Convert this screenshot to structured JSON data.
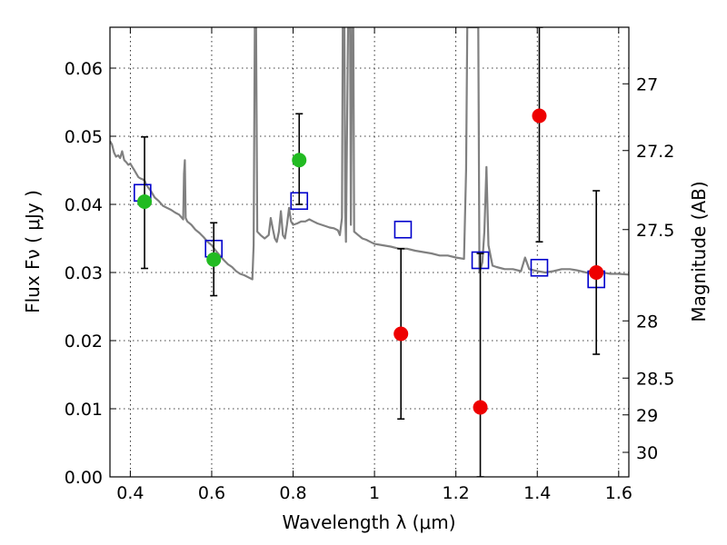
{
  "chart_data": {
    "type": "scatter",
    "xlabel": "Wavelength  λ (μm)",
    "ylabel_left": "Flux  Fν  ( μJy )",
    "ylabel_right": "Magnitude (AB)",
    "xlim": [
      0.35,
      1.625
    ],
    "ylim": [
      0.0,
      0.066
    ],
    "x_ticks": [
      0.4,
      0.6,
      0.8,
      1.0,
      1.2,
      1.4,
      1.6
    ],
    "x_tick_labels": [
      "0.4",
      "0.6",
      "0.8",
      "1",
      "1.2",
      "1.4",
      "1.6"
    ],
    "y_ticks": [
      0.0,
      0.01,
      0.02,
      0.03,
      0.04,
      0.05,
      0.06
    ],
    "y_tick_labels": [
      "0.00",
      "0.01",
      "0.02",
      "0.03",
      "0.04",
      "0.05",
      "0.06"
    ],
    "right_ticks": [
      {
        "label": "27",
        "flux": 0.0577
      },
      {
        "label": "27.2",
        "flux": 0.0479
      },
      {
        "label": "27.5",
        "flux": 0.0363
      },
      {
        "label": "28",
        "flux": 0.0229
      },
      {
        "label": "28.5",
        "flux": 0.0145
      },
      {
        "label": "29",
        "flux": 0.0091
      },
      {
        "label": "30",
        "flux": 0.0036
      }
    ],
    "grid": true,
    "colors": {
      "spectrum": "#808080",
      "model": "#0000cc",
      "detected": "#22bb22",
      "undetected": "#ee0000",
      "errorbar": "#000000"
    },
    "spectrum": [
      [
        0.35,
        0.0493
      ],
      [
        0.355,
        0.0488
      ],
      [
        0.36,
        0.0476
      ],
      [
        0.365,
        0.047
      ],
      [
        0.37,
        0.0472
      ],
      [
        0.375,
        0.0468
      ],
      [
        0.38,
        0.0478
      ],
      [
        0.385,
        0.0465
      ],
      [
        0.39,
        0.0462
      ],
      [
        0.395,
        0.0458
      ],
      [
        0.4,
        0.046
      ],
      [
        0.405,
        0.0455
      ],
      [
        0.41,
        0.045
      ],
      [
        0.415,
        0.0445
      ],
      [
        0.42,
        0.044
      ],
      [
        0.425,
        0.0438
      ],
      [
        0.43,
        0.0437
      ],
      [
        0.435,
        0.0435
      ],
      [
        0.44,
        0.0428
      ],
      [
        0.45,
        0.042
      ],
      [
        0.46,
        0.041
      ],
      [
        0.47,
        0.0405
      ],
      [
        0.48,
        0.0398
      ],
      [
        0.49,
        0.0395
      ],
      [
        0.5,
        0.0392
      ],
      [
        0.51,
        0.0388
      ],
      [
        0.52,
        0.0385
      ],
      [
        0.53,
        0.0378
      ],
      [
        0.532,
        0.0445
      ],
      [
        0.534,
        0.0465
      ],
      [
        0.536,
        0.038
      ],
      [
        0.54,
        0.0375
      ],
      [
        0.55,
        0.037
      ],
      [
        0.56,
        0.0363
      ],
      [
        0.57,
        0.0358
      ],
      [
        0.58,
        0.0352
      ],
      [
        0.59,
        0.0345
      ],
      [
        0.6,
        0.034
      ],
      [
        0.61,
        0.0332
      ],
      [
        0.62,
        0.0325
      ],
      [
        0.63,
        0.0318
      ],
      [
        0.64,
        0.0312
      ],
      [
        0.65,
        0.0308
      ],
      [
        0.66,
        0.0302
      ],
      [
        0.67,
        0.0298
      ],
      [
        0.68,
        0.0296
      ],
      [
        0.69,
        0.0293
      ],
      [
        0.7,
        0.029
      ],
      [
        0.703,
        0.034
      ],
      [
        0.706,
        0.066
      ],
      [
        0.709,
        0.066
      ],
      [
        0.712,
        0.036
      ],
      [
        0.72,
        0.0355
      ],
      [
        0.73,
        0.035
      ],
      [
        0.74,
        0.0355
      ],
      [
        0.745,
        0.038
      ],
      [
        0.75,
        0.0365
      ],
      [
        0.755,
        0.035
      ],
      [
        0.76,
        0.0345
      ],
      [
        0.765,
        0.036
      ],
      [
        0.77,
        0.039
      ],
      [
        0.775,
        0.0355
      ],
      [
        0.78,
        0.035
      ],
      [
        0.785,
        0.037
      ],
      [
        0.79,
        0.0395
      ],
      [
        0.795,
        0.0375
      ],
      [
        0.8,
        0.037
      ],
      [
        0.81,
        0.0372
      ],
      [
        0.82,
        0.0375
      ],
      [
        0.83,
        0.0375
      ],
      [
        0.84,
        0.0378
      ],
      [
        0.85,
        0.0375
      ],
      [
        0.86,
        0.0372
      ],
      [
        0.87,
        0.037
      ],
      [
        0.88,
        0.0368
      ],
      [
        0.89,
        0.0366
      ],
      [
        0.9,
        0.0365
      ],
      [
        0.91,
        0.0362
      ],
      [
        0.915,
        0.0355
      ],
      [
        0.92,
        0.038
      ],
      [
        0.922,
        0.066
      ],
      [
        0.926,
        0.066
      ],
      [
        0.928,
        0.039
      ],
      [
        0.93,
        0.0345
      ],
      [
        0.935,
        0.066
      ],
      [
        0.94,
        0.066
      ],
      [
        0.942,
        0.037
      ],
      [
        0.945,
        0.066
      ],
      [
        0.948,
        0.066
      ],
      [
        0.95,
        0.036
      ],
      [
        0.96,
        0.0355
      ],
      [
        0.97,
        0.035
      ],
      [
        0.98,
        0.0348
      ],
      [
        0.99,
        0.0345
      ],
      [
        1.0,
        0.0342
      ],
      [
        1.02,
        0.034
      ],
      [
        1.04,
        0.0338
      ],
      [
        1.06,
        0.0335
      ],
      [
        1.08,
        0.0335
      ],
      [
        1.1,
        0.0332
      ],
      [
        1.12,
        0.033
      ],
      [
        1.14,
        0.0328
      ],
      [
        1.16,
        0.0325
      ],
      [
        1.18,
        0.0325
      ],
      [
        1.2,
        0.0322
      ],
      [
        1.22,
        0.032
      ],
      [
        1.225,
        0.045
      ],
      [
        1.228,
        0.066
      ],
      [
        1.255,
        0.066
      ],
      [
        1.258,
        0.03
      ],
      [
        1.265,
        0.0315
      ],
      [
        1.27,
        0.036
      ],
      [
        1.275,
        0.0455
      ],
      [
        1.28,
        0.034
      ],
      [
        1.29,
        0.031
      ],
      [
        1.3,
        0.0308
      ],
      [
        1.32,
        0.0305
      ],
      [
        1.34,
        0.0305
      ],
      [
        1.36,
        0.0302
      ],
      [
        1.37,
        0.0322
      ],
      [
        1.38,
        0.0305
      ],
      [
        1.4,
        0.0302
      ],
      [
        1.42,
        0.03
      ],
      [
        1.44,
        0.0302
      ],
      [
        1.46,
        0.0305
      ],
      [
        1.48,
        0.0305
      ],
      [
        1.5,
        0.0303
      ],
      [
        1.52,
        0.03
      ],
      [
        1.54,
        0.0298
      ],
      [
        1.56,
        0.03
      ],
      [
        1.58,
        0.0298
      ],
      [
        1.6,
        0.0298
      ],
      [
        1.625,
        0.0297
      ]
    ],
    "model_points": [
      {
        "x": 0.43,
        "y": 0.0417
      },
      {
        "x": 0.605,
        "y": 0.0335
      },
      {
        "x": 0.815,
        "y": 0.0405
      },
      {
        "x": 1.07,
        "y": 0.0363
      },
      {
        "x": 1.26,
        "y": 0.0318
      },
      {
        "x": 1.405,
        "y": 0.0307
      },
      {
        "x": 1.545,
        "y": 0.029
      }
    ],
    "observed_points": [
      {
        "x": 0.435,
        "y": 0.0404,
        "yerr_low": 0.0306,
        "yerr_high": 0.0499,
        "status": "detected"
      },
      {
        "x": 0.605,
        "y": 0.0319,
        "yerr_low": 0.0266,
        "yerr_high": 0.0373,
        "status": "detected"
      },
      {
        "x": 0.815,
        "y": 0.0465,
        "yerr_low": 0.04,
        "yerr_high": 0.0533,
        "status": "detected"
      },
      {
        "x": 1.065,
        "y": 0.021,
        "yerr_low": 0.0085,
        "yerr_high": 0.0335,
        "status": "undetected"
      },
      {
        "x": 1.26,
        "y": 0.0102,
        "yerr_low": 0.0,
        "yerr_high": 0.0328,
        "status": "undetected"
      },
      {
        "x": 1.405,
        "y": 0.053,
        "yerr_low": 0.0345,
        "yerr_high": 0.066,
        "status": "undetected"
      },
      {
        "x": 1.545,
        "y": 0.03,
        "yerr_low": 0.018,
        "yerr_high": 0.042,
        "status": "undetected"
      }
    ]
  }
}
